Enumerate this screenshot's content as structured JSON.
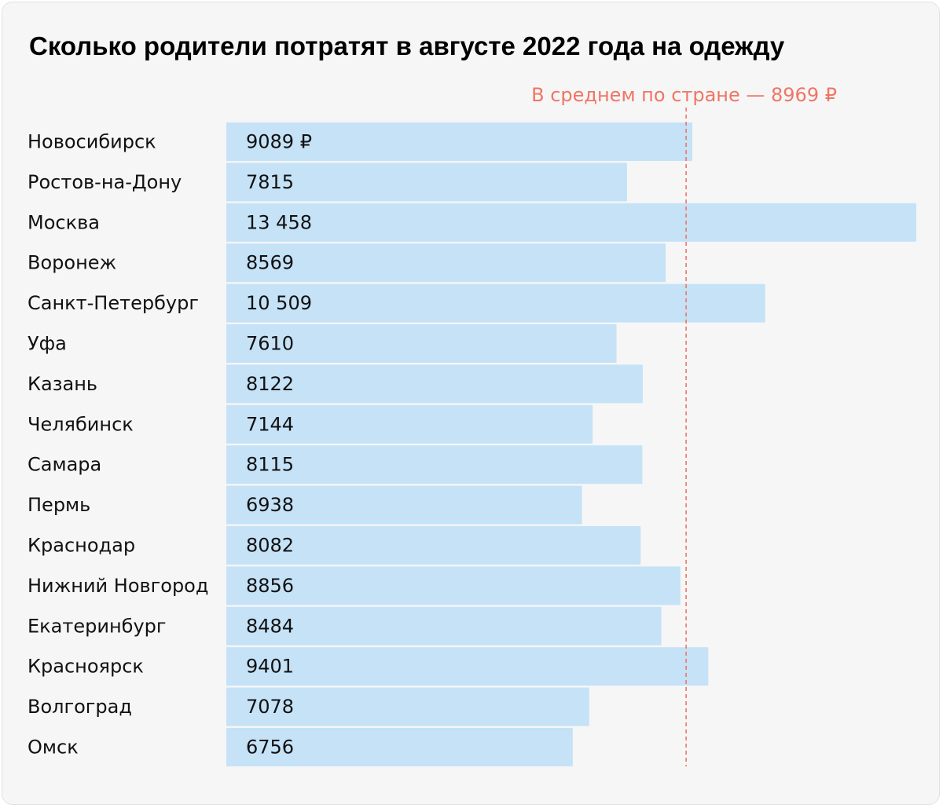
{
  "chart_data": {
    "type": "bar",
    "orientation": "horizontal",
    "title": "Сколько родители потратят в августе 2022 года на одежду",
    "categories": [
      "Новосибирск",
      "Ростов-на-Дону",
      "Москва",
      "Воронеж",
      "Санкт-Петербург",
      "Уфа",
      "Казань",
      "Челябинск",
      "Самара",
      "Пермь",
      "Краснодар",
      "Нижний Новгород",
      "Екатеринбург",
      "Красноярск",
      "Волгоград",
      "Омск"
    ],
    "values": [
      9089,
      7815,
      13458,
      8569,
      10509,
      7610,
      8122,
      7144,
      8115,
      6938,
      8082,
      8856,
      8484,
      9401,
      7078,
      6756
    ],
    "value_labels": [
      "9089 ₽",
      "7815",
      "13 458",
      "8569",
      "10 509",
      "7610",
      "8122",
      "7144",
      "8115",
      "6938",
      "8082",
      "8856",
      "8484",
      "9401",
      "7078",
      "6756"
    ],
    "reference_line": {
      "value": 8969,
      "label": "В среднем по стране — 8969 ₽"
    },
    "xlim": [
      0,
      13458
    ],
    "grid": false,
    "legend": "none",
    "colors": {
      "bar": "#c5e2f7",
      "reference": "#f07563",
      "background": "#f6f6f6",
      "text": "#111111"
    }
  }
}
